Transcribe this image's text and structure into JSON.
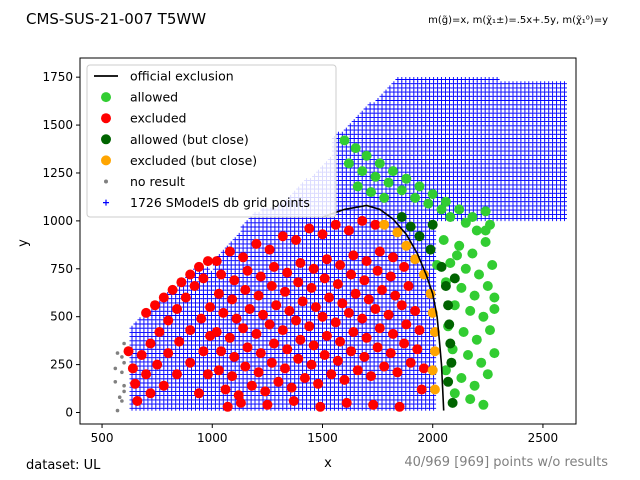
{
  "figure": {
    "title": "CMS-SUS-21-007 T5WW",
    "subtitle": "m(g̃)=x, m(χ̃₁±)=.5x+.5y, m(χ̃₁⁰)=y",
    "footer_left": "dataset: UL",
    "footer_right": "40/969 [969] points w/o results"
  },
  "colors": {
    "official_exclusion": "#000000",
    "allowed": "#32cd32",
    "excluded": "#ff0000",
    "allowed_close": "#006400",
    "excluded_close": "#ffa500",
    "no_result": "#808080",
    "grid_points": "#0000ff"
  },
  "chart_data": {
    "type": "scatter",
    "title": "CMS-SUS-21-007 T5WW",
    "xlabel": "x",
    "ylabel": "y",
    "xlim": [
      400,
      2650
    ],
    "ylim": [
      -60,
      1850
    ],
    "xticks": [
      500,
      1000,
      1500,
      2000,
      2500
    ],
    "yticks": [
      0,
      250,
      500,
      750,
      1000,
      1250,
      1500,
      1750
    ],
    "grid": false,
    "legend_position": "upper-left",
    "legend": [
      "official exclusion",
      "allowed",
      "excluded",
      "allowed (but close)",
      "excluded (but close)",
      "no result",
      "1726 SModelS db grid points"
    ],
    "exclusion_curve": [
      [
        1500,
        1020
      ],
      [
        1600,
        1060
      ],
      [
        1700,
        1080
      ],
      [
        1760,
        1060
      ],
      [
        1820,
        1010
      ],
      [
        1880,
        930
      ],
      [
        1930,
        830
      ],
      [
        1970,
        720
      ],
      [
        2000,
        620
      ],
      [
        2020,
        500
      ],
      [
        2030,
        380
      ],
      [
        2040,
        250
      ],
      [
        2045,
        130
      ],
      [
        2050,
        10
      ]
    ],
    "grid_region": [
      [
        [
          630,
          20
        ],
        [
          1000,
          20
        ],
        [
          1000,
          730
        ],
        [
          950,
          780
        ],
        [
          630,
          440
        ]
      ],
      [
        [
          1000,
          20
        ],
        [
          2020,
          20
        ],
        [
          2020,
          1050
        ],
        [
          1700,
          1200
        ],
        [
          1200,
          1050
        ],
        [
          1000,
          780
        ]
      ],
      [
        [
          1250,
          1000
        ],
        [
          1850,
          1000
        ],
        [
          1850,
          1450
        ],
        [
          1600,
          1400
        ],
        [
          1400,
          1180
        ]
      ],
      [
        [
          1550,
          1000
        ],
        [
          2600,
          1000
        ],
        [
          2600,
          1730
        ],
        [
          1850,
          1750
        ],
        [
          1550,
          1430
        ]
      ]
    ],
    "series": {
      "allowed": [
        [
          2080,
          1020
        ],
        [
          2150,
          990
        ],
        [
          2200,
          950
        ],
        [
          2260,
          980
        ],
        [
          2050,
          900
        ],
        [
          2120,
          870
        ],
        [
          2180,
          830
        ],
        [
          2240,
          890
        ],
        [
          2080,
          780
        ],
        [
          2150,
          750
        ],
        [
          2210,
          720
        ],
        [
          2270,
          770
        ],
        [
          2060,
          680
        ],
        [
          2130,
          650
        ],
        [
          2190,
          610
        ],
        [
          2250,
          660
        ],
        [
          2100,
          560
        ],
        [
          2170,
          530
        ],
        [
          2230,
          500
        ],
        [
          2280,
          540
        ],
        [
          2070,
          450
        ],
        [
          2140,
          420
        ],
        [
          2200,
          380
        ],
        [
          2260,
          430
        ],
        [
          2090,
          330
        ],
        [
          2160,
          300
        ],
        [
          2220,
          260
        ],
        [
          2280,
          310
        ],
        [
          2060,
          220
        ],
        [
          2130,
          180
        ],
        [
          2190,
          140
        ],
        [
          2250,
          200
        ],
        [
          2100,
          100
        ],
        [
          2170,
          70
        ],
        [
          2230,
          40
        ],
        [
          1600,
          1420
        ],
        [
          1650,
          1380
        ],
        [
          1700,
          1340
        ],
        [
          1760,
          1300
        ],
        [
          1820,
          1260
        ],
        [
          1880,
          1220
        ],
        [
          1940,
          1180
        ],
        [
          2000,
          1140
        ],
        [
          2060,
          1100
        ],
        [
          2120,
          1060
        ],
        [
          2180,
          1020
        ],
        [
          2240,
          1050
        ],
        [
          1620,
          1300
        ],
        [
          1680,
          1260
        ],
        [
          1740,
          1230
        ],
        [
          1800,
          1200
        ],
        [
          1860,
          1160
        ],
        [
          1920,
          1120
        ],
        [
          1980,
          1090
        ],
        [
          2040,
          1060
        ],
        [
          1660,
          1180
        ],
        [
          1720,
          1150
        ],
        [
          1780,
          1120
        ],
        [
          2240,
          950
        ],
        [
          2020,
          770
        ],
        [
          2110,
          820
        ],
        [
          2280,
          600
        ]
      ],
      "excluded": [
        [
          1020,
          790
        ],
        [
          1080,
          840
        ],
        [
          1140,
          810
        ],
        [
          1200,
          880
        ],
        [
          1260,
          850
        ],
        [
          1320,
          920
        ],
        [
          1380,
          900
        ],
        [
          1440,
          960
        ],
        [
          1500,
          930
        ],
        [
          1560,
          980
        ],
        [
          1620,
          950
        ],
        [
          1680,
          1000
        ],
        [
          1740,
          980
        ],
        [
          1040,
          720
        ],
        [
          1100,
          690
        ],
        [
          1160,
          740
        ],
        [
          1220,
          710
        ],
        [
          1280,
          760
        ],
        [
          1340,
          730
        ],
        [
          1400,
          780
        ],
        [
          1460,
          750
        ],
        [
          1520,
          800
        ],
        [
          1580,
          770
        ],
        [
          1640,
          820
        ],
        [
          1700,
          790
        ],
        [
          1760,
          840
        ],
        [
          1820,
          810
        ],
        [
          1030,
          620
        ],
        [
          1090,
          590
        ],
        [
          1150,
          640
        ],
        [
          1210,
          610
        ],
        [
          1270,
          660
        ],
        [
          1330,
          630
        ],
        [
          1390,
          680
        ],
        [
          1450,
          650
        ],
        [
          1510,
          700
        ],
        [
          1570,
          670
        ],
        [
          1630,
          720
        ],
        [
          1690,
          690
        ],
        [
          1750,
          740
        ],
        [
          1810,
          710
        ],
        [
          1870,
          760
        ],
        [
          1050,
          520
        ],
        [
          1110,
          490
        ],
        [
          1170,
          540
        ],
        [
          1230,
          510
        ],
        [
          1290,
          560
        ],
        [
          1350,
          530
        ],
        [
          1410,
          580
        ],
        [
          1470,
          550
        ],
        [
          1530,
          600
        ],
        [
          1590,
          570
        ],
        [
          1650,
          620
        ],
        [
          1710,
          590
        ],
        [
          1770,
          640
        ],
        [
          1830,
          610
        ],
        [
          1890,
          660
        ],
        [
          1020,
          420
        ],
        [
          1080,
          390
        ],
        [
          1140,
          440
        ],
        [
          1200,
          410
        ],
        [
          1260,
          460
        ],
        [
          1320,
          430
        ],
        [
          1380,
          480
        ],
        [
          1440,
          450
        ],
        [
          1500,
          500
        ],
        [
          1560,
          470
        ],
        [
          1620,
          520
        ],
        [
          1680,
          490
        ],
        [
          1740,
          540
        ],
        [
          1800,
          510
        ],
        [
          1860,
          560
        ],
        [
          1920,
          530
        ],
        [
          1040,
          320
        ],
        [
          1100,
          290
        ],
        [
          1160,
          340
        ],
        [
          1220,
          310
        ],
        [
          1280,
          360
        ],
        [
          1340,
          330
        ],
        [
          1400,
          380
        ],
        [
          1460,
          350
        ],
        [
          1520,
          400
        ],
        [
          1580,
          370
        ],
        [
          1640,
          420
        ],
        [
          1700,
          390
        ],
        [
          1760,
          440
        ],
        [
          1820,
          410
        ],
        [
          1880,
          460
        ],
        [
          1940,
          430
        ],
        [
          1030,
          220
        ],
        [
          1090,
          190
        ],
        [
          1150,
          240
        ],
        [
          1210,
          210
        ],
        [
          1270,
          260
        ],
        [
          1330,
          230
        ],
        [
          1390,
          280
        ],
        [
          1450,
          250
        ],
        [
          1510,
          300
        ],
        [
          1570,
          270
        ],
        [
          1630,
          320
        ],
        [
          1690,
          290
        ],
        [
          1750,
          340
        ],
        [
          1810,
          310
        ],
        [
          1870,
          360
        ],
        [
          1930,
          330
        ],
        [
          1060,
          120
        ],
        [
          1120,
          90
        ],
        [
          1180,
          140
        ],
        [
          1240,
          110
        ],
        [
          1300,
          160
        ],
        [
          1360,
          130
        ],
        [
          1420,
          180
        ],
        [
          1480,
          150
        ],
        [
          1540,
          200
        ],
        [
          1600,
          170
        ],
        [
          1660,
          220
        ],
        [
          1720,
          190
        ],
        [
          1780,
          240
        ],
        [
          1840,
          210
        ],
        [
          1900,
          260
        ],
        [
          1960,
          230
        ],
        [
          1070,
          30
        ],
        [
          1130,
          50
        ],
        [
          1250,
          40
        ],
        [
          1370,
          60
        ],
        [
          1490,
          30
        ],
        [
          1610,
          50
        ],
        [
          1730,
          40
        ],
        [
          1850,
          30
        ],
        [
          1950,
          120
        ],
        [
          640,
          230
        ],
        [
          680,
          300
        ],
        [
          720,
          360
        ],
        [
          760,
          420
        ],
        [
          800,
          480
        ],
        [
          840,
          540
        ],
        [
          880,
          600
        ],
        [
          920,
          660
        ],
        [
          960,
          700
        ],
        [
          650,
          150
        ],
        [
          700,
          200
        ],
        [
          750,
          250
        ],
        [
          800,
          310
        ],
        [
          850,
          370
        ],
        [
          900,
          430
        ],
        [
          950,
          490
        ],
        [
          990,
          550
        ],
        [
          660,
          60
        ],
        [
          720,
          100
        ],
        [
          780,
          140
        ],
        [
          840,
          200
        ],
        [
          900,
          260
        ],
        [
          960,
          320
        ],
        [
          990,
          400
        ],
        [
          700,
          520
        ],
        [
          740,
          560
        ],
        [
          780,
          600
        ],
        [
          820,
          640
        ],
        [
          860,
          680
        ],
        [
          900,
          720
        ],
        [
          940,
          760
        ],
        [
          980,
          790
        ],
        [
          620,
          320
        ],
        [
          980,
          200
        ],
        [
          940,
          100
        ]
      ],
      "allowed_close": [
        [
          1900,
          970
        ],
        [
          1940,
          920
        ],
        [
          1990,
          850
        ],
        [
          2040,
          760
        ],
        [
          2060,
          660
        ],
        [
          2070,
          560
        ],
        [
          2075,
          460
        ],
        [
          2080,
          360
        ],
        [
          2085,
          260
        ],
        [
          2070,
          160
        ],
        [
          2090,
          50
        ],
        [
          1860,
          1020
        ],
        [
          2000,
          980
        ],
        [
          2100,
          700
        ]
      ],
      "excluded_close": [
        [
          1780,
          980
        ],
        [
          1840,
          940
        ],
        [
          1880,
          870
        ],
        [
          1920,
          800
        ],
        [
          1960,
          720
        ],
        [
          1990,
          620
        ],
        [
          2000,
          520
        ],
        [
          2010,
          420
        ],
        [
          2010,
          320
        ],
        [
          2000,
          220
        ],
        [
          2010,
          120
        ]
      ],
      "no_result": [
        [
          570,
          10
        ],
        [
          590,
          60
        ],
        [
          600,
          110
        ],
        [
          560,
          160
        ],
        [
          590,
          210
        ],
        [
          600,
          260
        ],
        [
          570,
          310
        ],
        [
          600,
          360
        ],
        [
          580,
          80
        ],
        [
          560,
          230
        ],
        [
          590,
          290
        ],
        [
          600,
          140
        ]
      ]
    }
  }
}
